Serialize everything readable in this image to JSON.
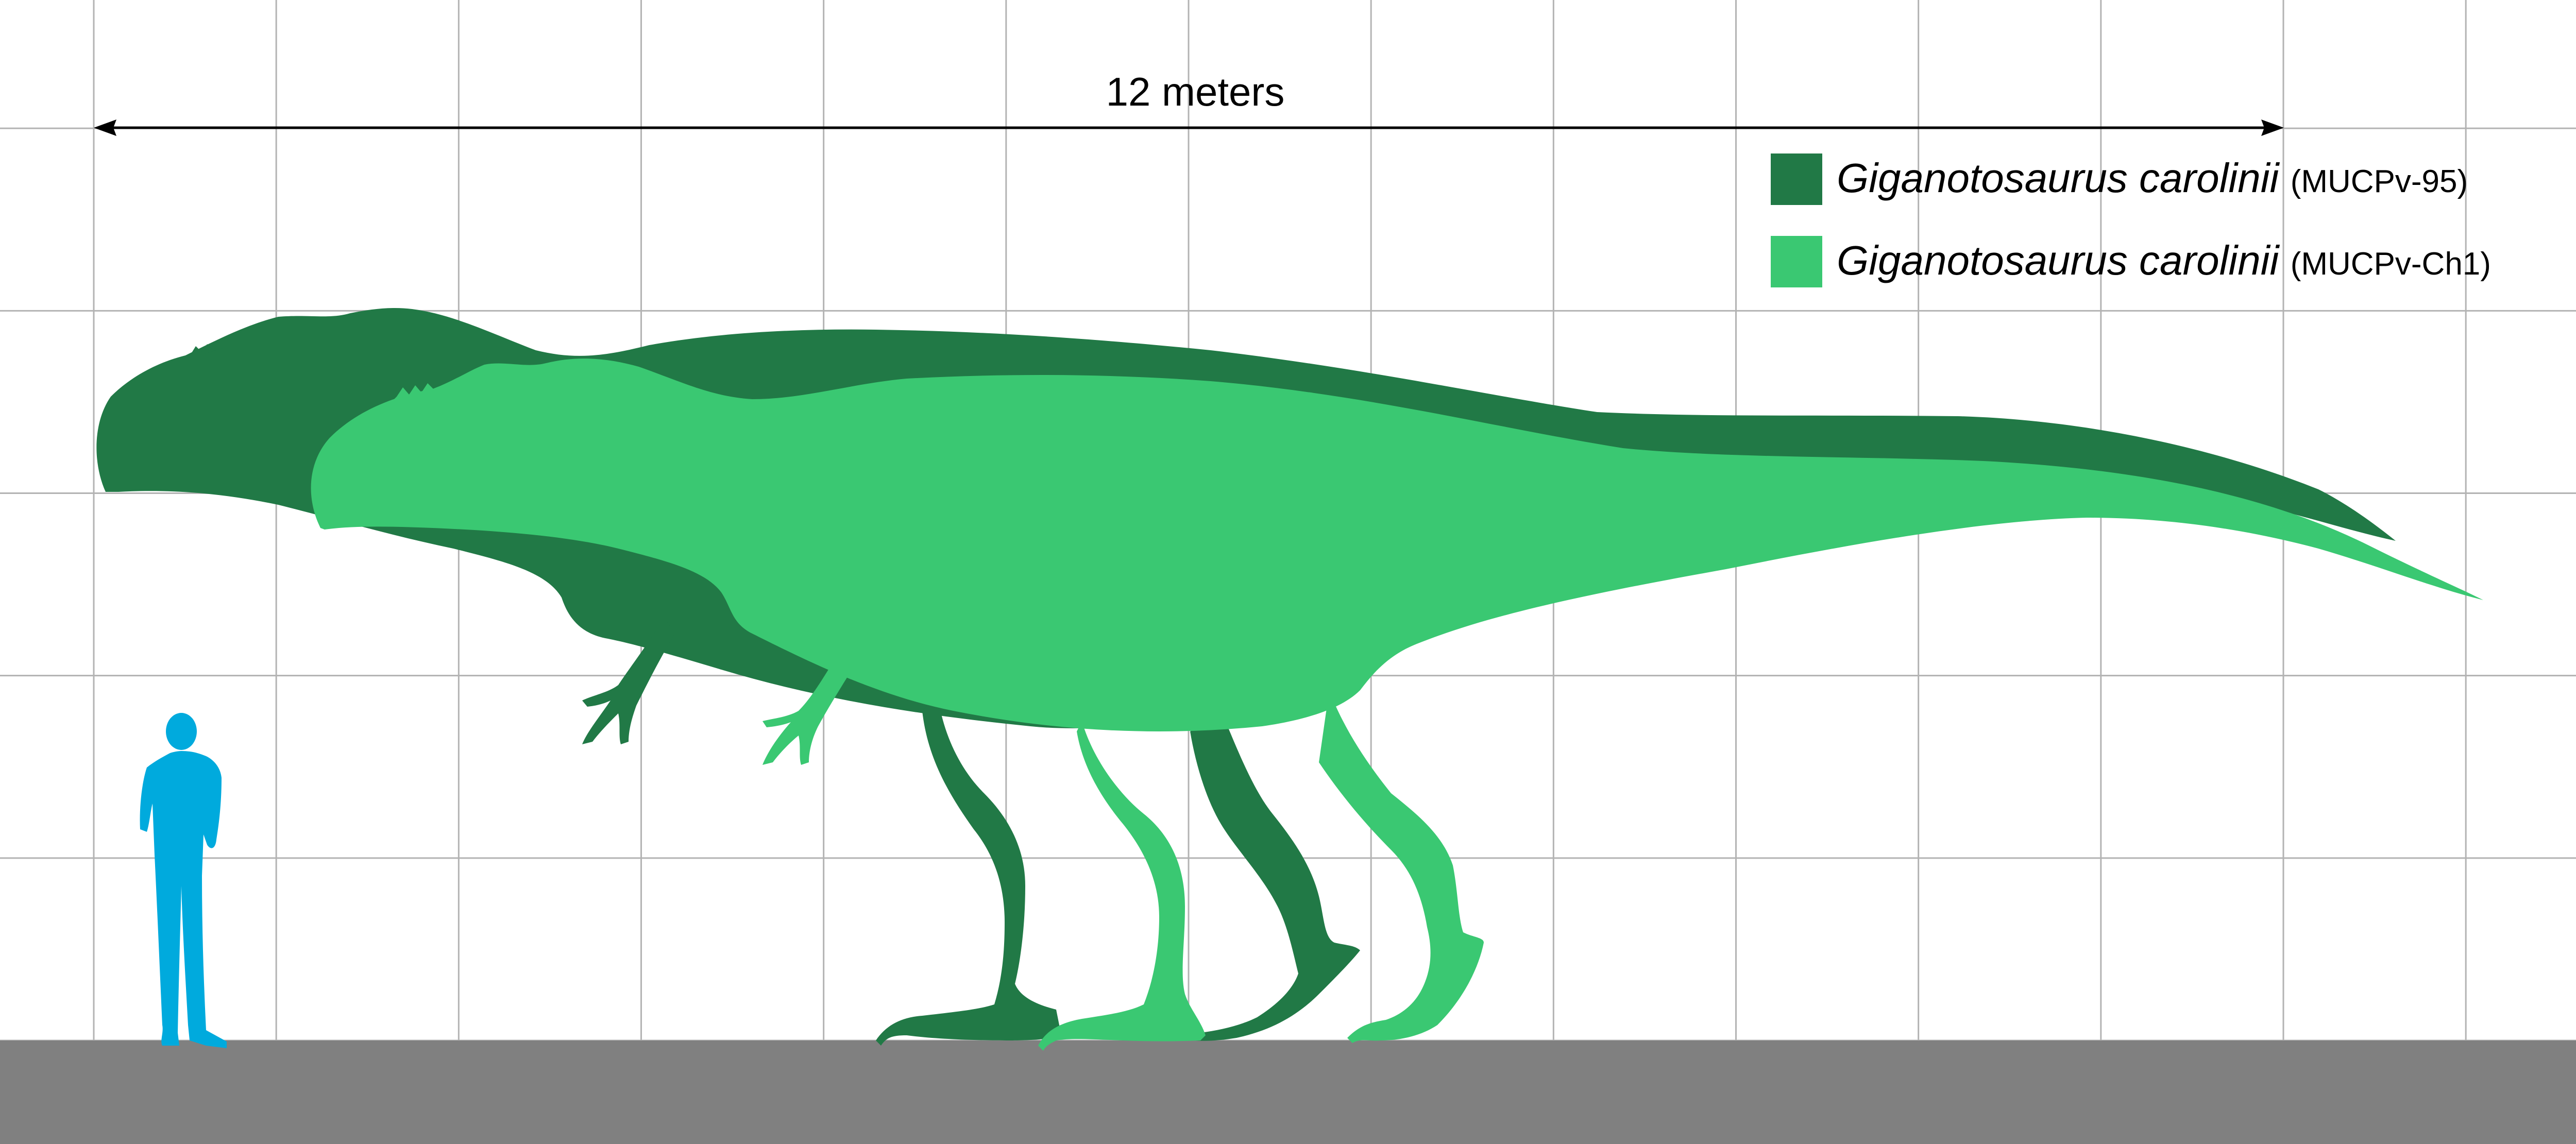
{
  "scale_bar": {
    "label": "12 meters",
    "length_m": 12
  },
  "grid": {
    "visible": true,
    "cell_m": 1
  },
  "colors": {
    "background": "#ffffff",
    "grid_line": "#b3b3b3",
    "ground": "#808080",
    "human": "#00aadd",
    "specimen_1": "#217946",
    "specimen_2": "#3ac872",
    "text": "#000000"
  },
  "legend": [
    {
      "species": "Giganotosaurus carolinii",
      "specimen": "(MUCPv-95)",
      "color": "#217946"
    },
    {
      "species": "Giganotosaurus carolinii",
      "specimen": "(MUCPv-Ch1)",
      "color": "#3ac872"
    }
  ]
}
